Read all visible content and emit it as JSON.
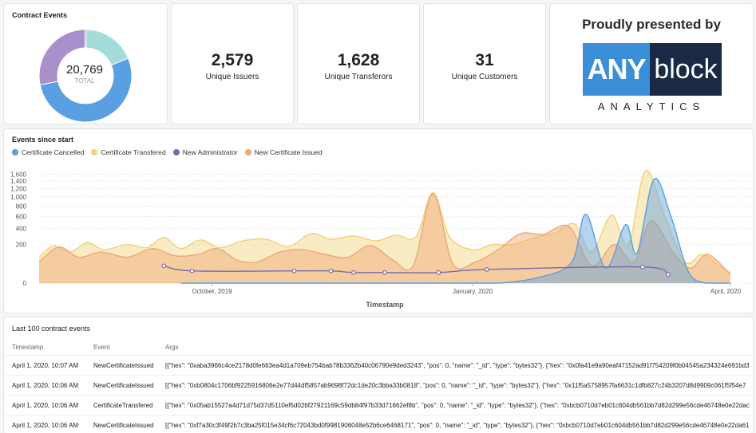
{
  "donut_card": {
    "title": "Contract Events",
    "total_value": "20,769",
    "total_label": "TOTAL",
    "segments": [
      {
        "name": "Certificate Cancelled",
        "value": 0.53,
        "color": "#5b9fe3"
      },
      {
        "name": "New Administrator",
        "value": 0.28,
        "color": "#a98fcb"
      },
      {
        "name": "Certificate Transfered",
        "value": 0.005,
        "color": "#7c7a7a"
      },
      {
        "name": "New Certificate Issued",
        "value": 0.185,
        "color": "#a3dcd8"
      }
    ]
  },
  "kpis": [
    {
      "value": "2,579",
      "label": "Unique Issuers"
    },
    {
      "value": "1,628",
      "label": "Unique Transferors"
    },
    {
      "value": "31",
      "label": "Unique Customers"
    }
  ],
  "sponsor": {
    "title": "Proudly presented by",
    "logo_left": "ANY",
    "logo_right": "block",
    "logo_sub": "ANALYTICS"
  },
  "chart_card": {
    "title": "Events since start",
    "legend": [
      {
        "name": "Certificate Cancelled",
        "color": "#5b9fe3"
      },
      {
        "name": "Certificate Transfered",
        "color": "#f2d27a"
      },
      {
        "name": "New Administrator",
        "color": "#7a6aa6"
      },
      {
        "name": "New Certificate Issued",
        "color": "#f0a774"
      }
    ]
  },
  "chart_data": {
    "type": "area",
    "xlabel": "Timestamp",
    "ylabel": "",
    "x_ticks": [
      "October, 2019",
      "January, 2020",
      "April, 2020"
    ],
    "y_ticks": [
      "0",
      "200",
      "400",
      "600",
      "800",
      "1,000",
      "1,200",
      "1,400",
      "1,600"
    ],
    "y_scale": "sqrt",
    "ylim": [
      0,
      1800
    ],
    "x_domain": [
      "2019-08-01",
      "2020-04-01"
    ],
    "series": [
      {
        "name": "Certificate Transfered",
        "color": "#f2d27a",
        "points": [
          [
            "2019-08-01",
            90
          ],
          [
            "2019-08-06",
            185
          ],
          [
            "2019-08-12",
            130
          ],
          [
            "2019-08-18",
            220
          ],
          [
            "2019-08-24",
            150
          ],
          [
            "2019-09-01",
            200
          ],
          [
            "2019-09-08",
            170
          ],
          [
            "2019-09-14",
            280
          ],
          [
            "2019-09-20",
            160
          ],
          [
            "2019-09-27",
            250
          ],
          [
            "2019-10-04",
            170
          ],
          [
            "2019-10-12",
            240
          ],
          [
            "2019-10-20",
            260
          ],
          [
            "2019-10-28",
            180
          ],
          [
            "2019-11-05",
            330
          ],
          [
            "2019-11-12",
            260
          ],
          [
            "2019-11-20",
            300
          ],
          [
            "2019-11-28",
            240
          ],
          [
            "2019-12-05",
            310
          ],
          [
            "2019-12-12",
            290
          ],
          [
            "2019-12-18",
            1100
          ],
          [
            "2019-12-24",
            280
          ],
          [
            "2020-01-01",
            150
          ],
          [
            "2020-01-08",
            200
          ],
          [
            "2020-01-15",
            200
          ],
          [
            "2020-01-23",
            280
          ],
          [
            "2020-01-30",
            340
          ],
          [
            "2020-02-06",
            470
          ],
          [
            "2020-02-12",
            130
          ],
          [
            "2020-02-19",
            620
          ],
          [
            "2020-02-25",
            200
          ],
          [
            "2020-03-02",
            1700
          ],
          [
            "2020-03-09",
            580
          ],
          [
            "2020-03-16",
            60
          ],
          [
            "2020-03-22",
            110
          ],
          [
            "2020-03-28",
            40
          ],
          [
            "2020-04-01",
            15
          ]
        ]
      },
      {
        "name": "New Certificate Issued",
        "color": "#f0a774",
        "points": [
          [
            "2019-08-01",
            60
          ],
          [
            "2019-08-08",
            175
          ],
          [
            "2019-08-15",
            90
          ],
          [
            "2019-08-23",
            130
          ],
          [
            "2019-09-01",
            90
          ],
          [
            "2019-09-10",
            160
          ],
          [
            "2019-09-18",
            100
          ],
          [
            "2019-09-26",
            110
          ],
          [
            "2019-10-03",
            160
          ],
          [
            "2019-10-10",
            70
          ],
          [
            "2019-10-17",
            60
          ],
          [
            "2019-10-25",
            130
          ],
          [
            "2019-11-02",
            150
          ],
          [
            "2019-11-10",
            110
          ],
          [
            "2019-11-18",
            90
          ],
          [
            "2019-11-26",
            190
          ],
          [
            "2019-12-04",
            70
          ],
          [
            "2019-12-11",
            40
          ],
          [
            "2019-12-18",
            1080
          ],
          [
            "2019-12-25",
            50
          ],
          [
            "2020-01-02",
            60
          ],
          [
            "2020-01-10",
            150
          ],
          [
            "2020-01-18",
            330
          ],
          [
            "2020-01-26",
            320
          ],
          [
            "2020-02-04",
            430
          ],
          [
            "2020-02-12",
            40
          ],
          [
            "2020-02-20",
            200
          ],
          [
            "2020-02-27",
            60
          ],
          [
            "2020-03-04",
            520
          ],
          [
            "2020-03-12",
            120
          ],
          [
            "2020-03-18",
            30
          ],
          [
            "2020-03-24",
            110
          ],
          [
            "2020-04-01",
            10
          ]
        ]
      },
      {
        "name": "Certificate Cancelled",
        "color": "#5b9fe3",
        "points": [
          [
            "2019-09-20",
            0
          ],
          [
            "2019-10-01",
            0
          ],
          [
            "2019-10-15",
            0
          ],
          [
            "2019-11-01",
            0
          ],
          [
            "2019-11-15",
            0
          ],
          [
            "2019-12-01",
            0
          ],
          [
            "2019-12-20",
            0
          ],
          [
            "2020-01-10",
            0
          ],
          [
            "2020-01-25",
            5
          ],
          [
            "2020-02-05",
            60
          ],
          [
            "2020-02-10",
            640
          ],
          [
            "2020-02-17",
            30
          ],
          [
            "2020-02-24",
            460
          ],
          [
            "2020-02-28",
            120
          ],
          [
            "2020-03-05",
            1450
          ],
          [
            "2020-03-11",
            600
          ],
          [
            "2020-03-17",
            20
          ],
          [
            "2020-03-23",
            0
          ],
          [
            "2020-04-01",
            0
          ]
        ]
      },
      {
        "name": "New Administrator",
        "color": "#7a6aa6",
        "points": [
          [
            "2019-09-14",
            40
          ],
          [
            "2019-09-24",
            20
          ],
          [
            "2019-10-30",
            20
          ],
          [
            "2019-11-12",
            20
          ],
          [
            "2019-11-20",
            15
          ],
          [
            "2019-12-01",
            15
          ],
          [
            "2019-12-20",
            15
          ],
          [
            "2020-01-06",
            25
          ],
          [
            "2020-03-01",
            35
          ],
          [
            "2020-03-10",
            10
          ]
        ]
      }
    ]
  },
  "table_card": {
    "title": "Last 100 contract events",
    "columns": [
      "Timestamp",
      "Event",
      "Args"
    ],
    "rows": [
      [
        "April 1, 2020, 10:07 AM",
        "NewCertificateIssued",
        "[{\"hex\": \"0xaba3966c4ce2178d0fe663ea4d1a709eb754bab78b3362b40c06790e9ded3243\", \"pos\": 0, \"name\": \"_id\", \"type\": \"bytes32\"}, {\"hex\": \"0x0fa41e9a90eaf47152ad91f754209f0b04545a234324e691bd3"
      ],
      [
        "April 1, 2020, 10:06 AM",
        "NewCertificateIssued",
        "[{\"hex\": \"0xb0804c1706bf9225916806e2e77d44df5857ab9698f72dc1de20c3bba33b0818\", \"pos\": 0, \"name\": \"_id\", \"type\": \"bytes32\"}, {\"hex\": \"0x11f5a5758957fa6631c1dfb827c24b3207d8d9909c061f5f54e7"
      ],
      [
        "April 1, 2020, 10:06 AM",
        "CertificateTransfered",
        "[{\"hex\": \"0x05ab15527a4d71d75d37d5110ef5d026f27921169c59db84f97b33d71662ef8b\", \"pos\": 0, \"name\": \"_id\", \"type\": \"bytes32\"}, {\"hex\": \"0xbcb0710d7eb01c604db561bb7d82d299e56cde46748e0e22dac"
      ],
      [
        "April 1, 2020, 10:06 AM",
        "NewCertificateIssued",
        "[{\"hex\": \"0xf7a30c3f49f2b7c3ba25f015e34cf6c72043bd0f9981906048e52b6ce6468171\", \"pos\": 0, \"name\": \"_id\", \"type\": \"bytes32\"}, {\"hex\": \"0xbcb0710d7eb01c604db561bb7d82d299e56cde46748e0e22da61"
      ]
    ]
  }
}
